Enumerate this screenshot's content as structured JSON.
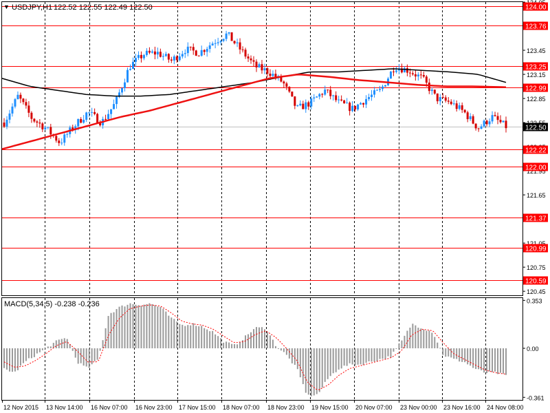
{
  "header": {
    "symbol": "USDJPY,H1",
    "ohlc": "122.52 122.55 122.49 122.50"
  },
  "macd_header": "MACD(5,34,5) -0.238 -0.236",
  "colors": {
    "bull": "#1f8fff",
    "bear": "#d40000",
    "level": "#ff0000",
    "ma_slow": "#000000",
    "ma_fast": "#ee1111",
    "macd_bar": "#999999",
    "macd_signal": "#ff0000",
    "vgrid": "#000000",
    "price_tag_bg": "#000000",
    "price_tag_text": "#ffffff"
  },
  "chart_data": [
    {
      "type": "candlestick",
      "title": "USDJPY,H1",
      "ylim": [
        120.4,
        124.05
      ],
      "y_ticks": [
        "124.05",
        "123.75",
        "123.45",
        "123.15",
        "122.85",
        "122.55",
        "122.25",
        "121.95",
        "121.65",
        "121.35",
        "121.05",
        "120.75",
        "120.45"
      ],
      "x_labels": [
        "12 Nov 2015",
        "13 Nov 14:00",
        "16 Nov 07:00",
        "16 Nov 23:00",
        "17 Nov 15:00",
        "18 Nov 07:00",
        "18 Nov 23:00",
        "19 Nov 15:00",
        "20 Nov 07:00",
        "23 Nov 00:00",
        "23 Nov 16:00",
        "24 Nov 08:00"
      ],
      "x_grid_at_labels": [
        1,
        2,
        3,
        4,
        5,
        6,
        7,
        8,
        9,
        10,
        11
      ],
      "bar_count": 184,
      "levels": [
        124.0,
        123.76,
        123.25,
        122.99,
        122.22,
        122.0,
        121.37,
        120.99,
        120.59
      ],
      "level_labels": [
        "124.00",
        "123.76",
        "123.25",
        "122.99",
        "122.22",
        "122.00",
        "121.37",
        "120.99",
        "120.59"
      ],
      "current_price": 122.5,
      "current_price_label": "122.50",
      "close_series": [
        122.55,
        122.88,
        122.6,
        122.48,
        122.3,
        122.5,
        122.68,
        122.55,
        122.8,
        123.25,
        123.4,
        123.42,
        123.32,
        123.46,
        123.42,
        123.55,
        123.65,
        123.45,
        123.25,
        123.18,
        123.05,
        122.72,
        122.8,
        122.95,
        122.8,
        122.72,
        122.85,
        122.95,
        123.25,
        123.2,
        123.1,
        122.85,
        122.8,
        122.68,
        122.48,
        122.62,
        122.5
      ],
      "ma_slow": [
        123.1,
        123.0,
        122.95,
        122.9,
        122.88,
        122.88,
        122.9,
        122.95,
        123.0,
        123.05,
        123.12,
        123.18,
        123.18,
        123.2,
        123.22,
        123.2,
        123.18,
        123.15,
        123.05
      ],
      "ma_fast": [
        122.22,
        122.32,
        122.42,
        122.52,
        122.62,
        122.7,
        122.8,
        122.9,
        123.0,
        123.1,
        123.15,
        123.12,
        123.08,
        123.05,
        123.02,
        123.0,
        123.0,
        122.99
      ]
    },
    {
      "type": "bar",
      "title": "MACD(5,34,5)",
      "ylim": [
        -0.38,
        0.37
      ],
      "y_ticks": [
        "0.353",
        "0.00",
        "-0.361"
      ],
      "macd": [
        -0.15,
        -0.18,
        -0.1,
        -0.05,
        0.0,
        0.05,
        0.08,
        -0.1,
        -0.15,
        -0.08,
        0.25,
        0.3,
        0.33,
        0.32,
        0.33,
        0.3,
        0.22,
        0.17,
        0.18,
        0.16,
        0.12,
        0.05,
        0.02,
        0.08,
        0.15,
        0.15,
        0.02,
        -0.05,
        -0.15,
        -0.35,
        -0.34,
        -0.22,
        -0.15,
        -0.12,
        -0.12,
        -0.1,
        -0.08,
        -0.06,
        0.05,
        0.18,
        0.15,
        0.12,
        -0.05,
        -0.08,
        -0.1,
        -0.15,
        -0.18,
        -0.18,
        -0.2
      ],
      "signal": [
        -0.1,
        -0.14,
        -0.13,
        -0.09,
        -0.04,
        0.02,
        0.05,
        -0.02,
        -0.1,
        -0.1,
        0.1,
        0.22,
        0.29,
        0.31,
        0.32,
        0.31,
        0.26,
        0.2,
        0.18,
        0.17,
        0.14,
        0.09,
        0.04,
        0.05,
        0.1,
        0.13,
        0.08,
        0.0,
        -0.09,
        -0.25,
        -0.31,
        -0.27,
        -0.2,
        -0.15,
        -0.13,
        -0.11,
        -0.09,
        -0.07,
        -0.02,
        0.1,
        0.14,
        0.13,
        0.04,
        -0.04,
        -0.08,
        -0.12,
        -0.16,
        -0.18,
        -0.19
      ]
    }
  ]
}
